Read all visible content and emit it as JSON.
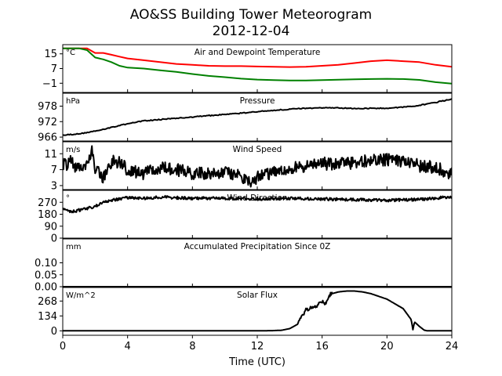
{
  "chart_data": {
    "type": "line",
    "title": "AO&SS Building Tower Meteorogram",
    "subtitle": "2012-12-04",
    "xlabel": "Time (UTC)",
    "xlim": [
      0,
      24
    ],
    "xticks": [
      0,
      4,
      8,
      12,
      16,
      20,
      24
    ],
    "xtick_labels": [
      "0",
      "4",
      "8",
      "12",
      "16",
      "20",
      "24"
    ],
    "panels": [
      {
        "id": "temperature",
        "title": "Air and Dewpoint Temperature",
        "unit": "°C",
        "ylim": [
          -6,
          20
        ],
        "yticks": [
          15,
          7,
          -1
        ],
        "ytick_labels": [
          "15",
          "7",
          "−1"
        ],
        "series": [
          {
            "color": "#ff0000",
            "x": [
              0,
              1,
              1.5,
              2,
              2.5,
              3,
              3.5,
              4,
              5,
              6,
              7,
              8,
              9,
              10,
              11,
              12,
              13,
              14,
              15,
              16,
              17,
              18,
              19,
              20,
              21,
              22,
              23,
              24
            ],
            "y": [
              18,
              18,
              18,
              15.5,
              15.5,
              14.5,
              13.5,
              12.5,
              11.5,
              10.5,
              9.5,
              9,
              8.5,
              8.3,
              8.3,
              8.1,
              8,
              7.8,
              8,
              8.5,
              9,
              10,
              11,
              11.5,
              11,
              10.5,
              9,
              8
            ]
          },
          {
            "color": "#008000",
            "x": [
              0,
              1,
              1.5,
              2,
              2.5,
              3,
              3.5,
              4,
              5,
              6,
              7,
              8,
              9,
              10,
              11,
              12,
              13,
              14,
              15,
              16,
              17,
              18,
              19,
              20,
              21,
              22,
              23,
              24
            ],
            "y": [
              18,
              18,
              17,
              13,
              12,
              10.5,
              8.5,
              7.5,
              7,
              6,
              5.2,
              4,
              3,
              2.3,
              1.5,
              1,
              0.7,
              0.5,
              0.5,
              0.7,
              0.9,
              1.1,
              1.3,
              1.4,
              1.3,
              0.8,
              -0.4,
              -1.2
            ]
          }
        ]
      },
      {
        "id": "pressure",
        "title": "Pressure",
        "unit": "hPa",
        "ylim": [
          964.5,
          983
        ],
        "yticks": [
          978,
          972,
          966
        ],
        "ytick_labels": [
          "978",
          "972",
          "966"
        ],
        "series": [
          {
            "color": "#000000",
            "x": [
              0,
              1,
              2,
              3,
              4,
              5,
              6,
              7,
              8,
              9,
              10,
              11,
              12,
              13,
              14,
              15,
              16,
              17,
              18,
              19,
              20,
              21,
              22,
              23,
              24
            ],
            "y": [
              966.8,
              967.3,
              968.3,
              969.8,
              971.2,
              972.3,
              972.8,
              973.3,
              973.8,
              974.3,
              974.8,
              975.3,
              975.8,
              976.4,
              976.8,
              977.2,
              977.3,
              977.3,
              977.1,
              977.2,
              977.2,
              977.6,
              978.3,
              979.4,
              980.8
            ]
          }
        ]
      },
      {
        "id": "wind_speed",
        "title": "Wind Speed",
        "unit": "m/s",
        "ylim": [
          2,
          14
        ],
        "yticks": [
          11,
          7,
          3
        ],
        "ytick_labels": [
          "11",
          "7",
          "3"
        ],
        "series": [
          {
            "color": "#000000",
            "x": [
              0,
              0.5,
              1,
              1.5,
              1.8,
              2,
              2.5,
              3,
              3.5,
              4,
              5,
              6,
              7,
              8,
              9,
              10,
              11,
              11.5,
              12,
              13,
              14,
              15,
              16,
              17,
              18,
              19,
              20,
              21,
              22,
              23,
              24
            ],
            "y": [
              8,
              9,
              7,
              9,
              12,
              7,
              5,
              9,
              9,
              7,
              6,
              7.5,
              7,
              6,
              6,
              6.3,
              5.5,
              4,
              5,
              6.5,
              7.5,
              8,
              8.5,
              8.5,
              8.5,
              9.5,
              9.5,
              9,
              8,
              7.5,
              6
            ]
          }
        ]
      },
      {
        "id": "wind_direction",
        "title": "Wind Direction",
        "unit": "°",
        "ylim": [
          0,
          360
        ],
        "yticks": [
          270,
          180,
          90,
          0
        ],
        "ytick_labels": [
          "270",
          "180",
          "90",
          "0"
        ],
        "series": [
          {
            "color": "#000000",
            "x": [
              0,
              0.5,
              1,
              1.5,
              2,
              2.5,
              3,
              4,
              5,
              6,
              7,
              8,
              10,
              12,
              14,
              16,
              18,
              20,
              22,
              24
            ],
            "y": [
              215,
              200,
              210,
              225,
              240,
              270,
              285,
              305,
              300,
              310,
              305,
              300,
              300,
              295,
              300,
              295,
              290,
              285,
              292,
              310
            ]
          }
        ]
      },
      {
        "id": "precipitation",
        "title": "Accumulated Precipitation Since 0Z",
        "unit": "mm",
        "ylim": [
          0,
          0.2
        ],
        "yticks": [
          0.1,
          0.05,
          0.0
        ],
        "ytick_labels": [
          "0.10",
          "0.05",
          "0.00"
        ],
        "series": [
          {
            "color": "#000000",
            "x": [
              0,
              24
            ],
            "y": [
              0,
              0
            ]
          }
        ]
      },
      {
        "id": "solar_flux",
        "title": "Solar Flux",
        "unit": "W/m^2",
        "ylim": [
          -40,
          390
        ],
        "yticks": [
          268,
          134,
          0
        ],
        "ytick_labels": [
          "268",
          "134",
          "0"
        ],
        "series": [
          {
            "color": "#000000",
            "x": [
              0,
              12,
              13,
              13.5,
              14,
              14.5,
              14.8,
              15,
              15.5,
              16,
              16.2,
              16.5,
              17,
              17.5,
              18,
              18.5,
              19,
              20,
              21,
              21.5,
              21.6,
              21.7,
              22,
              22.3,
              22.5,
              23,
              24
            ],
            "y": [
              0,
              0,
              2,
              5,
              20,
              60,
              140,
              190,
              210,
              260,
              240,
              330,
              350,
              358,
              358,
              350,
              335,
              285,
              200,
              100,
              10,
              80,
              40,
              6,
              0,
              0,
              0
            ]
          }
        ]
      }
    ]
  }
}
